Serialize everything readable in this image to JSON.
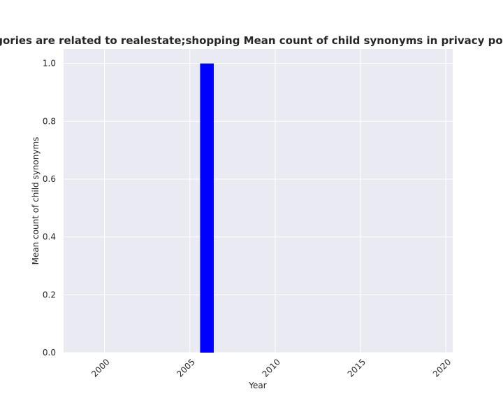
{
  "chart_data": {
    "type": "bar",
    "title": "categories are related to realestate;shopping Mean count of child synonyms in privacy policies",
    "xlabel": "Year",
    "ylabel": "Mean count of child synonyms",
    "x": [
      2006
    ],
    "values": [
      1.0
    ],
    "xlim": [
      1997.6,
      2020.4
    ],
    "ylim": [
      0,
      1.05
    ],
    "xticks": [
      2000,
      2005,
      2010,
      2015,
      2020
    ],
    "yticks": [
      "0.0",
      "0.2",
      "0.4",
      "0.6",
      "0.8",
      "1.0"
    ],
    "grid": true,
    "colors": {
      "bar": "#0000ff",
      "plot_background": "#eaeaf2",
      "grid": "#ffffff"
    }
  }
}
